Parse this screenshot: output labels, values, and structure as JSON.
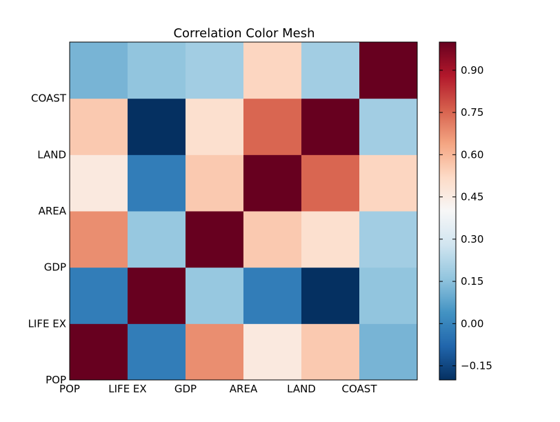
{
  "chart_data": {
    "type": "heatmap",
    "title": "Correlation Color Mesh",
    "x_labels": [
      "POP",
      "LIFE EX",
      "GDP",
      "AREA",
      "LAND",
      "COAST"
    ],
    "y_labels": [
      "POP",
      "LIFE EX",
      "GDP",
      "AREA",
      "LAND",
      "COAST"
    ],
    "matrix": [
      [
        1.0,
        -0.02,
        0.68,
        0.46,
        0.56,
        0.12
      ],
      [
        -0.02,
        1.0,
        0.17,
        -0.02,
        -0.2,
        0.16
      ],
      [
        0.68,
        0.17,
        1.0,
        0.56,
        0.5,
        0.19
      ],
      [
        0.46,
        -0.02,
        0.56,
        1.0,
        0.75,
        0.53
      ],
      [
        0.56,
        -0.2,
        0.5,
        0.75,
        1.0,
        0.19
      ],
      [
        0.12,
        0.16,
        0.19,
        0.53,
        0.19,
        1.0
      ]
    ],
    "colorbar": {
      "min": -0.2,
      "max": 1.0,
      "ticks": [
        -0.15,
        0.0,
        0.15,
        0.3,
        0.45,
        0.6,
        0.75,
        0.9
      ],
      "tick_labels": [
        "−0.15",
        "0.00",
        "0.15",
        "0.30",
        "0.45",
        "0.60",
        "0.75",
        "0.90"
      ],
      "colormap": "RdBu_r"
    }
  }
}
